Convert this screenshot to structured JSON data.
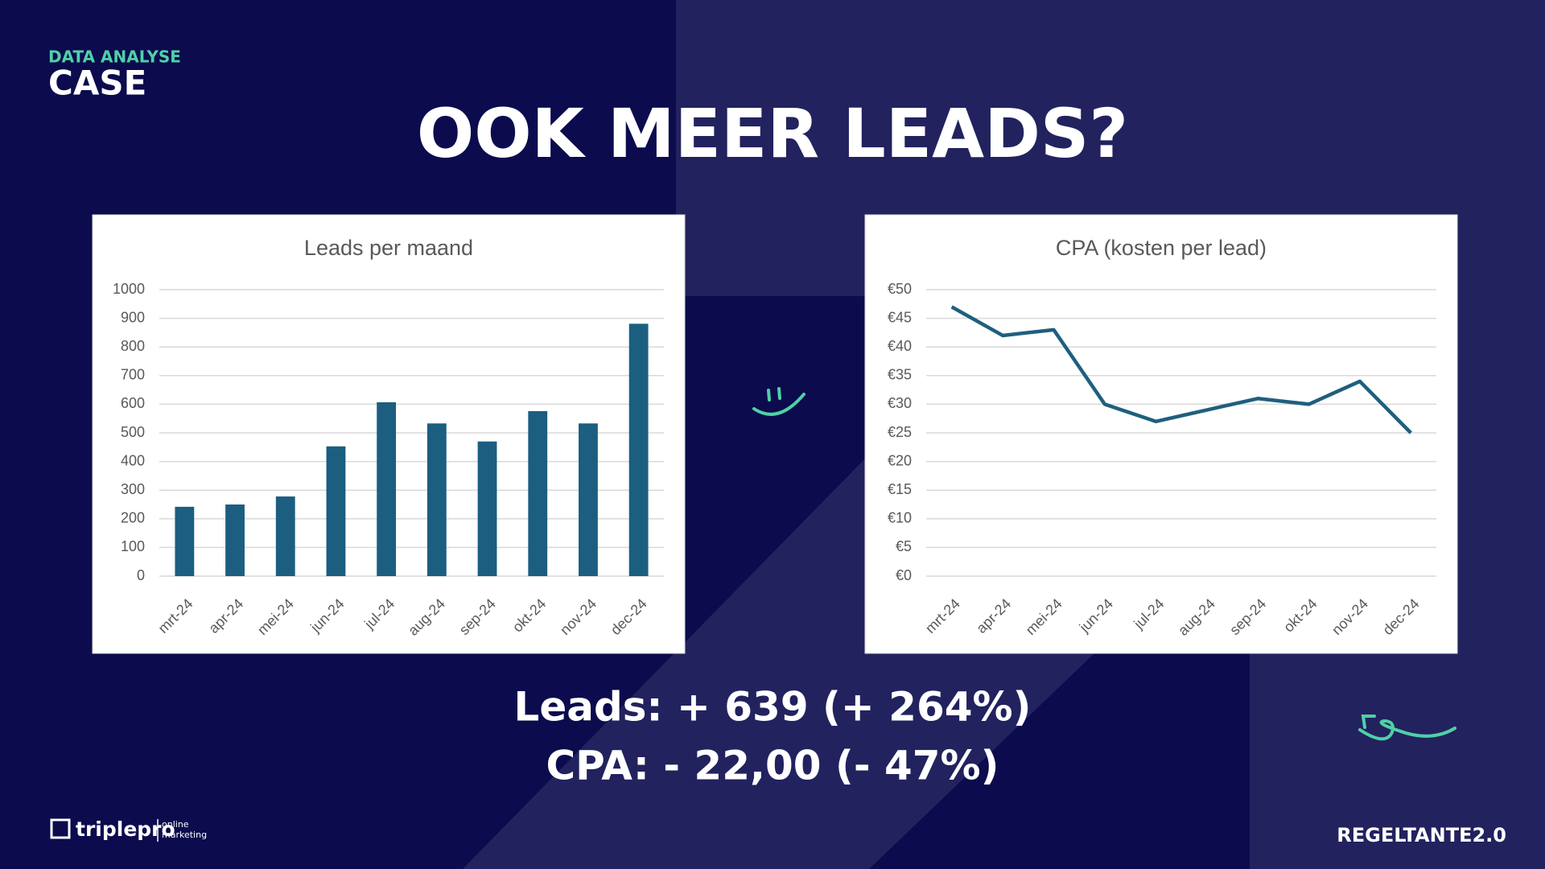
{
  "header": {
    "label": "DATA ANALYSE",
    "title": "CASE"
  },
  "title": "OOK MEER LEADS?",
  "chart_data": [
    {
      "type": "bar",
      "title": "Leads per maand",
      "categories": [
        "mrt-24",
        "apr-24",
        "mei-24",
        "jun-24",
        "jul-24",
        "aug-24",
        "sep-24",
        "okt-24",
        "nov-24",
        "dec-24"
      ],
      "values": [
        242,
        250,
        278,
        453,
        607,
        533,
        470,
        576,
        533,
        881
      ],
      "color": "#1b5e80",
      "ylim": [
        0,
        1000
      ],
      "yticks": [
        0,
        100,
        200,
        300,
        400,
        500,
        600,
        700,
        800,
        900,
        1000
      ],
      "grid": true
    },
    {
      "type": "line",
      "title": "CPA (kosten per lead)",
      "categories": [
        "mrt-24",
        "apr-24",
        "mei-24",
        "jun-24",
        "jul-24",
        "aug-24",
        "sep-24",
        "okt-24",
        "nov-24",
        "dec-24"
      ],
      "values": [
        47,
        42,
        43,
        30,
        27,
        29,
        31,
        30,
        34,
        25
      ],
      "color": "#1f5f7e",
      "ylim": [
        0,
        50
      ],
      "yticks": [
        {
          "value": 0,
          "label": "€0"
        },
        {
          "value": 5,
          "label": "€5"
        },
        {
          "value": 10,
          "label": "€10"
        },
        {
          "value": 15,
          "label": "€15"
        },
        {
          "value": 20,
          "label": "€20"
        },
        {
          "value": 25,
          "label": "€25"
        },
        {
          "value": 30,
          "label": "€30"
        },
        {
          "value": 35,
          "label": "€35"
        },
        {
          "value": 40,
          "label": "€40"
        },
        {
          "value": 45,
          "label": "€45"
        },
        {
          "value": 50,
          "label": "€50"
        }
      ],
      "grid": true
    }
  ],
  "stats": [
    "Leads: + 639 (+ 264%)",
    "CPA: - 22,00 (- 47%)"
  ],
  "footer": {
    "brand": "triplepro",
    "tagline": [
      "online",
      "marketing"
    ],
    "partner": "REGELTANTE2.0"
  }
}
